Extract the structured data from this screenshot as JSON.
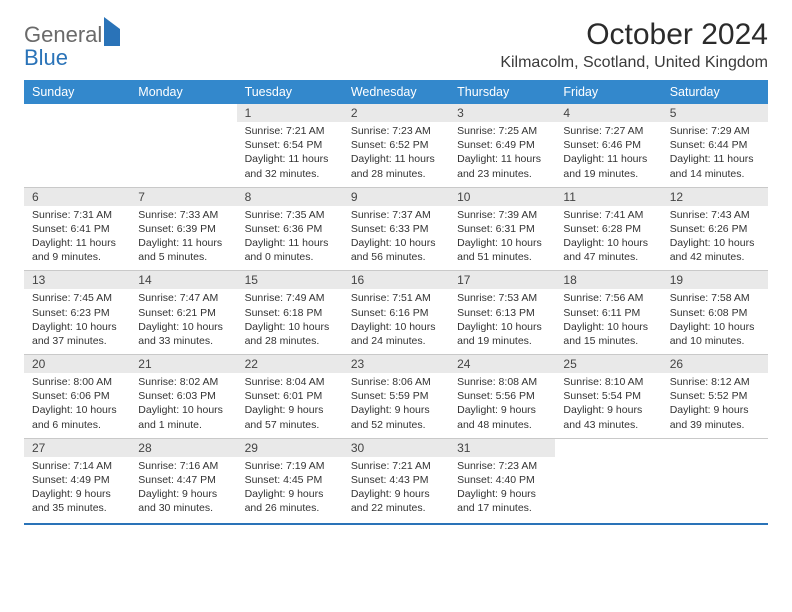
{
  "brand": {
    "part1": "General",
    "part2": "Blue"
  },
  "title": "October 2024",
  "location": "Kilmacolm, Scotland, United Kingdom",
  "colors": {
    "header_bg": "#3388cc",
    "header_fg": "#ffffff",
    "daynum_bg": "#e9e9e9",
    "rule": "#2a73b8",
    "logo_gray": "#6a6a6a",
    "logo_blue": "#2a73b8"
  },
  "dow": [
    "Sunday",
    "Monday",
    "Tuesday",
    "Wednesday",
    "Thursday",
    "Friday",
    "Saturday"
  ],
  "weeks": [
    [
      null,
      null,
      {
        "n": "1",
        "sr": "Sunrise: 7:21 AM",
        "ss": "Sunset: 6:54 PM",
        "dl": "Daylight: 11 hours and 32 minutes."
      },
      {
        "n": "2",
        "sr": "Sunrise: 7:23 AM",
        "ss": "Sunset: 6:52 PM",
        "dl": "Daylight: 11 hours and 28 minutes."
      },
      {
        "n": "3",
        "sr": "Sunrise: 7:25 AM",
        "ss": "Sunset: 6:49 PM",
        "dl": "Daylight: 11 hours and 23 minutes."
      },
      {
        "n": "4",
        "sr": "Sunrise: 7:27 AM",
        "ss": "Sunset: 6:46 PM",
        "dl": "Daylight: 11 hours and 19 minutes."
      },
      {
        "n": "5",
        "sr": "Sunrise: 7:29 AM",
        "ss": "Sunset: 6:44 PM",
        "dl": "Daylight: 11 hours and 14 minutes."
      }
    ],
    [
      {
        "n": "6",
        "sr": "Sunrise: 7:31 AM",
        "ss": "Sunset: 6:41 PM",
        "dl": "Daylight: 11 hours and 9 minutes."
      },
      {
        "n": "7",
        "sr": "Sunrise: 7:33 AM",
        "ss": "Sunset: 6:39 PM",
        "dl": "Daylight: 11 hours and 5 minutes."
      },
      {
        "n": "8",
        "sr": "Sunrise: 7:35 AM",
        "ss": "Sunset: 6:36 PM",
        "dl": "Daylight: 11 hours and 0 minutes."
      },
      {
        "n": "9",
        "sr": "Sunrise: 7:37 AM",
        "ss": "Sunset: 6:33 PM",
        "dl": "Daylight: 10 hours and 56 minutes."
      },
      {
        "n": "10",
        "sr": "Sunrise: 7:39 AM",
        "ss": "Sunset: 6:31 PM",
        "dl": "Daylight: 10 hours and 51 minutes."
      },
      {
        "n": "11",
        "sr": "Sunrise: 7:41 AM",
        "ss": "Sunset: 6:28 PM",
        "dl": "Daylight: 10 hours and 47 minutes."
      },
      {
        "n": "12",
        "sr": "Sunrise: 7:43 AM",
        "ss": "Sunset: 6:26 PM",
        "dl": "Daylight: 10 hours and 42 minutes."
      }
    ],
    [
      {
        "n": "13",
        "sr": "Sunrise: 7:45 AM",
        "ss": "Sunset: 6:23 PM",
        "dl": "Daylight: 10 hours and 37 minutes."
      },
      {
        "n": "14",
        "sr": "Sunrise: 7:47 AM",
        "ss": "Sunset: 6:21 PM",
        "dl": "Daylight: 10 hours and 33 minutes."
      },
      {
        "n": "15",
        "sr": "Sunrise: 7:49 AM",
        "ss": "Sunset: 6:18 PM",
        "dl": "Daylight: 10 hours and 28 minutes."
      },
      {
        "n": "16",
        "sr": "Sunrise: 7:51 AM",
        "ss": "Sunset: 6:16 PM",
        "dl": "Daylight: 10 hours and 24 minutes."
      },
      {
        "n": "17",
        "sr": "Sunrise: 7:53 AM",
        "ss": "Sunset: 6:13 PM",
        "dl": "Daylight: 10 hours and 19 minutes."
      },
      {
        "n": "18",
        "sr": "Sunrise: 7:56 AM",
        "ss": "Sunset: 6:11 PM",
        "dl": "Daylight: 10 hours and 15 minutes."
      },
      {
        "n": "19",
        "sr": "Sunrise: 7:58 AM",
        "ss": "Sunset: 6:08 PM",
        "dl": "Daylight: 10 hours and 10 minutes."
      }
    ],
    [
      {
        "n": "20",
        "sr": "Sunrise: 8:00 AM",
        "ss": "Sunset: 6:06 PM",
        "dl": "Daylight: 10 hours and 6 minutes."
      },
      {
        "n": "21",
        "sr": "Sunrise: 8:02 AM",
        "ss": "Sunset: 6:03 PM",
        "dl": "Daylight: 10 hours and 1 minute."
      },
      {
        "n": "22",
        "sr": "Sunrise: 8:04 AM",
        "ss": "Sunset: 6:01 PM",
        "dl": "Daylight: 9 hours and 57 minutes."
      },
      {
        "n": "23",
        "sr": "Sunrise: 8:06 AM",
        "ss": "Sunset: 5:59 PM",
        "dl": "Daylight: 9 hours and 52 minutes."
      },
      {
        "n": "24",
        "sr": "Sunrise: 8:08 AM",
        "ss": "Sunset: 5:56 PM",
        "dl": "Daylight: 9 hours and 48 minutes."
      },
      {
        "n": "25",
        "sr": "Sunrise: 8:10 AM",
        "ss": "Sunset: 5:54 PM",
        "dl": "Daylight: 9 hours and 43 minutes."
      },
      {
        "n": "26",
        "sr": "Sunrise: 8:12 AM",
        "ss": "Sunset: 5:52 PM",
        "dl": "Daylight: 9 hours and 39 minutes."
      }
    ],
    [
      {
        "n": "27",
        "sr": "Sunrise: 7:14 AM",
        "ss": "Sunset: 4:49 PM",
        "dl": "Daylight: 9 hours and 35 minutes."
      },
      {
        "n": "28",
        "sr": "Sunrise: 7:16 AM",
        "ss": "Sunset: 4:47 PM",
        "dl": "Daylight: 9 hours and 30 minutes."
      },
      {
        "n": "29",
        "sr": "Sunrise: 7:19 AM",
        "ss": "Sunset: 4:45 PM",
        "dl": "Daylight: 9 hours and 26 minutes."
      },
      {
        "n": "30",
        "sr": "Sunrise: 7:21 AM",
        "ss": "Sunset: 4:43 PM",
        "dl": "Daylight: 9 hours and 22 minutes."
      },
      {
        "n": "31",
        "sr": "Sunrise: 7:23 AM",
        "ss": "Sunset: 4:40 PM",
        "dl": "Daylight: 9 hours and 17 minutes."
      },
      null,
      null
    ]
  ]
}
